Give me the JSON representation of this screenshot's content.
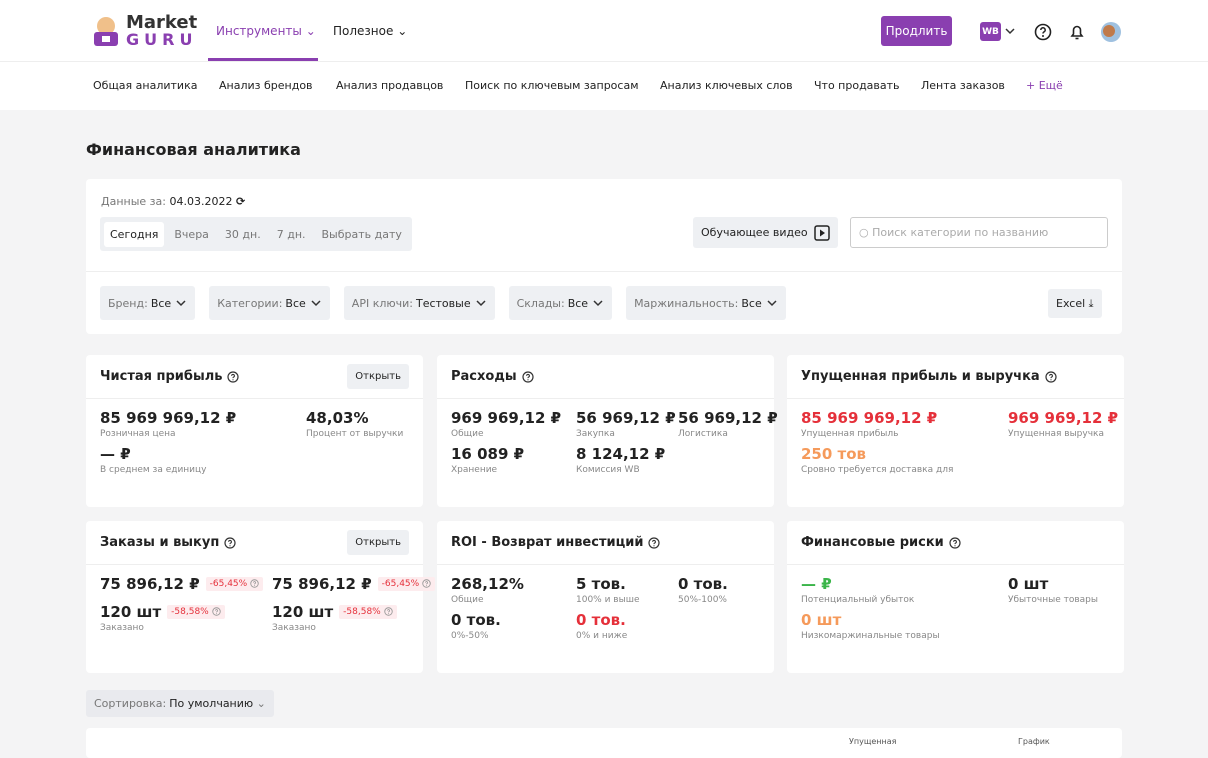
{
  "header": {
    "logo_top": "Market",
    "logo_bottom": "GURU",
    "menu": [
      "Инструменты",
      "Полезное"
    ],
    "button": "Продлить",
    "badge": "WB"
  },
  "nav": [
    "Общая аналитика",
    "Анализ брендов",
    "Анализ продавцов",
    "Поиск по ключевым запросам",
    "Анализ ключевых слов",
    "Что продавать",
    "Лента заказов",
    "+ Ещё"
  ],
  "page_title": "Финансовая аналитика",
  "filters": {
    "date_label": "Данные за:",
    "date": "04.03.2022",
    "periods": [
      "Сегодня",
      "Вчера",
      "30 дн.",
      "7 дн.",
      "Выбрать дату"
    ],
    "video": "Обучающее видео",
    "search_placeholder": "Поиск категории по названию",
    "selects": [
      {
        "label": "Бренд:",
        "value": "Все"
      },
      {
        "label": "Категории:",
        "value": "Все"
      },
      {
        "label": "API ключи:",
        "value": "Тестовые"
      },
      {
        "label": "Склады:",
        "value": "Все"
      },
      {
        "label": "Маржинальность:",
        "value": "Все"
      }
    ],
    "excel": "Excel"
  },
  "cards": [
    {
      "title": "Чистая прибыль",
      "button": "Открыть",
      "metrics": [
        {
          "value": "85 969 969,12 ₽",
          "label": "Розничная цена"
        },
        {
          "value": "48,03%",
          "label": "Процент от выручки"
        },
        {
          "value": "— ₽",
          "label": "В среднем за единицу"
        }
      ]
    },
    {
      "title": "Расходы",
      "metrics": [
        {
          "value": "969 969,12 ₽",
          "label": "Общие"
        },
        {
          "value": "56 969,12 ₽",
          "label": "Закупка"
        },
        {
          "value": "56 969,12 ₽",
          "label": "Логистика"
        },
        {
          "value": "16 089 ₽",
          "label": "Хранение"
        },
        {
          "value": "8 124,12 ₽",
          "label": "Комиссия WB"
        }
      ]
    },
    {
      "title": "Упущенная прибыль и выручка",
      "metrics": [
        {
          "value": "85 969 969,12 ₽",
          "label": "Упущенная прибыль",
          "color": "#e5303a"
        },
        {
          "value": "969 969,12 ₽",
          "label": "Упущенная выручка",
          "color": "#e5303a"
        },
        {
          "value": "250 тов",
          "label": "Сровно требуется доставка для",
          "color": "#f59a5b"
        }
      ]
    },
    {
      "title": "Заказы и выкуп",
      "button": "Открыть",
      "metrics": [
        {
          "value": "75 896,12 ₽",
          "change": "-65,45%"
        },
        {
          "value": "75 896,12 ₽",
          "change": "-65,45%"
        },
        {
          "value": "120 шт",
          "change": "-58,58%",
          "label": "Заказано"
        },
        {
          "value": "120 шт",
          "change": "-58,58%",
          "label": "Заказано"
        }
      ]
    },
    {
      "title": "ROI - Возврат инвестиций",
      "metrics": [
        {
          "value": "268,12%",
          "label": "Общие"
        },
        {
          "value": "5 тов.",
          "label": "100% и выше"
        },
        {
          "value": "0 тов.",
          "label": "50%-100%"
        },
        {
          "value": "0 тов.",
          "label": "0%-50%"
        },
        {
          "value": "0 тов.",
          "label": "0% и ниже",
          "color": "#e5303a"
        }
      ]
    },
    {
      "title": "Финансовые риски",
      "metrics": [
        {
          "value": "— ₽",
          "label": "Потенциальный убыток",
          "color": "#3bb54a"
        },
        {
          "value": "0 шт",
          "label": "Убыточные товары"
        },
        {
          "value": "0 шт",
          "label": "Низкомаржинальные товары",
          "color": "#f59a5b"
        }
      ]
    }
  ],
  "sort": {
    "label": "Сортировка:",
    "value": "По умолчанию"
  },
  "table_headers": [
    "Упущенная",
    "График"
  ]
}
